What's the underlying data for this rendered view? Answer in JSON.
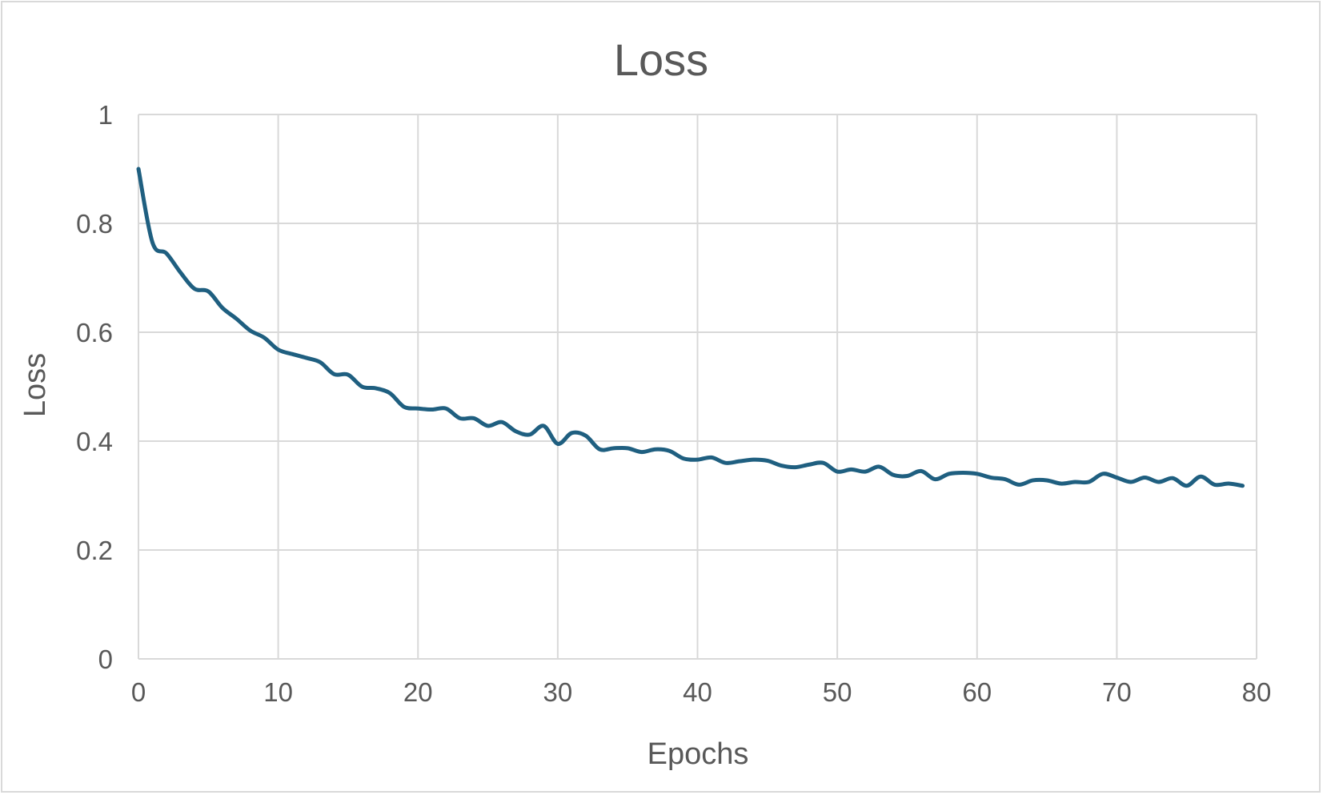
{
  "chart_data": {
    "type": "line",
    "title": "Loss",
    "xlabel": "Epochs",
    "ylabel": "Loss",
    "xlim": [
      0,
      80
    ],
    "ylim": [
      0,
      1
    ],
    "x_ticks": [
      "0",
      "10",
      "20",
      "30",
      "40",
      "50",
      "60",
      "70",
      "80"
    ],
    "y_ticks": [
      "0",
      "0.2",
      "0.4",
      "0.6",
      "0.8",
      "1"
    ],
    "grid": true,
    "legend": "none",
    "line_color": "#1f5f80",
    "grid_color": "#d9d9d9",
    "series": [
      {
        "x": [
          0,
          1,
          2,
          3,
          4,
          5,
          6,
          7,
          8,
          9,
          10,
          11,
          12,
          13,
          14,
          15,
          16,
          17,
          18,
          19,
          20,
          21,
          22,
          23,
          24,
          25,
          26,
          27,
          28,
          29,
          30,
          31,
          32,
          33,
          34,
          35,
          36,
          37,
          38,
          39,
          40,
          41,
          42,
          43,
          44,
          45,
          46,
          47,
          48,
          49,
          50,
          51,
          52,
          53,
          54,
          55,
          56,
          57,
          58,
          59,
          60,
          61,
          62,
          63,
          64,
          65,
          66,
          67,
          68,
          69,
          70,
          71,
          72,
          73,
          74,
          75,
          76,
          77,
          78,
          79
        ],
        "values": [
          0.9,
          0.765,
          0.745,
          0.71,
          0.68,
          0.675,
          0.645,
          0.625,
          0.603,
          0.59,
          0.568,
          0.56,
          0.553,
          0.545,
          0.523,
          0.522,
          0.5,
          0.497,
          0.488,
          0.463,
          0.46,
          0.458,
          0.46,
          0.442,
          0.442,
          0.428,
          0.435,
          0.418,
          0.412,
          0.428,
          0.395,
          0.415,
          0.41,
          0.385,
          0.387,
          0.387,
          0.38,
          0.385,
          0.382,
          0.368,
          0.366,
          0.37,
          0.36,
          0.363,
          0.366,
          0.364,
          0.355,
          0.352,
          0.357,
          0.36,
          0.344,
          0.348,
          0.344,
          0.353,
          0.338,
          0.336,
          0.345,
          0.33,
          0.34,
          0.342,
          0.34,
          0.333,
          0.33,
          0.32,
          0.328,
          0.328,
          0.322,
          0.325,
          0.325,
          0.34,
          0.333,
          0.325,
          0.333,
          0.325,
          0.332,
          0.318,
          0.335,
          0.32,
          0.322,
          0.318
        ]
      }
    ]
  }
}
